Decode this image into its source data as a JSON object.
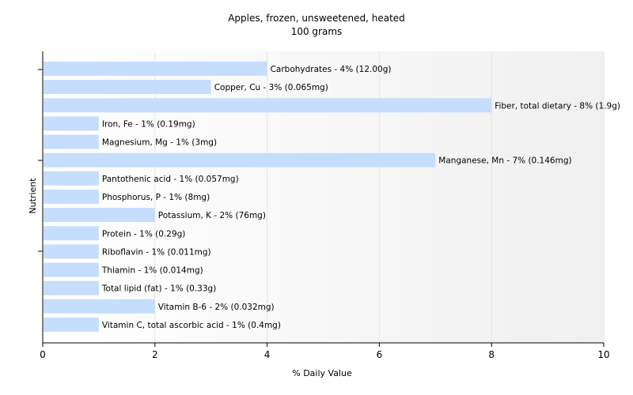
{
  "chart_data": {
    "type": "bar",
    "orientation": "horizontal",
    "title": "Apples, frozen, unsweetened, heated",
    "subtitle": "100 grams",
    "xlabel": "% Daily Value",
    "ylabel": "Nutrient",
    "xlim": [
      0,
      10
    ],
    "xticks": [
      "0",
      "2",
      "4",
      "6",
      "8",
      "10"
    ],
    "grid": true,
    "bar_color": "#c6defd",
    "categories": [
      "Carbohydrates",
      "Copper, Cu",
      "Fiber, total dietary",
      "Iron, Fe",
      "Magnesium, Mg",
      "Manganese, Mn",
      "Pantothenic acid",
      "Phosphorus, P",
      "Potassium, K",
      "Protein",
      "Riboflavin",
      "Thiamin",
      "Total lipid (fat)",
      "Vitamin B-6",
      "Vitamin C, total ascorbic acid"
    ],
    "values": [
      4,
      3,
      8,
      1,
      1,
      7,
      1,
      1,
      2,
      1,
      1,
      1,
      1,
      2,
      1
    ],
    "labels": [
      "Carbohydrates - 4% (12.00g)",
      "Copper, Cu - 3% (0.065mg)",
      "Fiber, total dietary - 8% (1.9g)",
      "Iron, Fe - 1% (0.19mg)",
      "Magnesium, Mg - 1% (3mg)",
      "Manganese, Mn - 7% (0.146mg)",
      "Pantothenic acid - 1% (0.057mg)",
      "Phosphorus, P - 1% (8mg)",
      "Potassium, K - 2% (76mg)",
      "Protein - 1% (0.29g)",
      "Riboflavin - 1% (0.011mg)",
      "Thiamin - 1% (0.014mg)",
      "Total lipid (fat) - 1% (0.33g)",
      "Vitamin B-6 - 2% (0.032mg)",
      "Vitamin C, total ascorbic acid - 1% (0.4mg)"
    ]
  }
}
